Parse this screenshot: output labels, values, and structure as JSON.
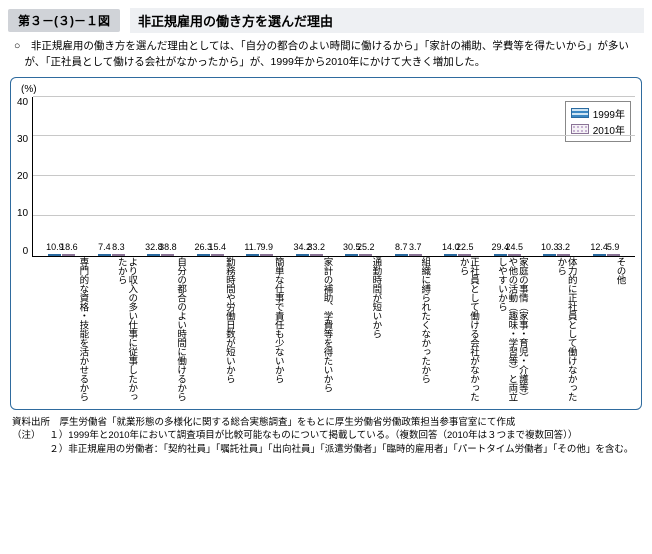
{
  "figure_number": "第３－(３)－１図",
  "figure_title": "非正規雇用の働き方を選んだ理由",
  "summary": "○　非正規雇用の働き方を選んだ理由としては、「自分の都合のよい時間に働けるから」「家計の補助、学費等を得たいから」が多いが、「正社員として働ける会社がなかったから」が、1999年から2010年にかけて大きく増加した。",
  "chart": {
    "type": "bar",
    "unit": "(%)",
    "ylim": [
      0,
      40
    ],
    "ytick_step": 10,
    "grid_color": "#c8c8c8",
    "background_color": "#ffffff",
    "border_color": "#2f6b9e",
    "series": [
      {
        "name": "1999年",
        "style": "bar-1999"
      },
      {
        "name": "2010年",
        "style": "bar-2010"
      }
    ],
    "categories": [
      {
        "label": "専門的な資格・技能を活かせるから",
        "v1999": 10.9,
        "v2010": 18.6
      },
      {
        "label": "より収入の多い仕事に従事したかったから",
        "v1999": 7.4,
        "v2010": 8.3
      },
      {
        "label": "自分の都合のよい時間に働けるから",
        "v1999": 32.8,
        "v2010": 38.8
      },
      {
        "label": "勤務時間や労働日数が短いから",
        "v1999": 26.3,
        "v2010": 15.4
      },
      {
        "label": "簡単な仕事で責任も少ないから",
        "v1999": 11.7,
        "v2010": 9.9
      },
      {
        "label": "家計の補助、学費等を得たいから",
        "v1999": 34.2,
        "v2010": 33.2
      },
      {
        "label": "通勤時間が短いから",
        "v1999": 30.5,
        "v2010": 25.2
      },
      {
        "label": "組織に縛られたくなかったから",
        "v1999": 8.7,
        "v2010": 3.7
      },
      {
        "label": "正社員として働ける会社がなかったから",
        "v1999": 14.0,
        "v2010": 22.5
      },
      {
        "label": "家庭の事情（家事・育児・介護等）や他の活動（趣味・学習等）と両立しやすいから",
        "v1999": 29.4,
        "v2010": 24.5
      },
      {
        "label": "体力的に正社員として働けなかったから",
        "v1999": 10.3,
        "v2010": 3.2
      },
      {
        "label": "その他",
        "v1999": 12.4,
        "v2010": 5.9
      }
    ]
  },
  "source_label": "資料出所　",
  "source_text": "厚生労働省「就業形態の多様化に関する総合実態調査」をもとに厚生労働省労働政策担当参事官室にて作成",
  "notes_label": "（注）　",
  "notes": [
    {
      "num": "１）",
      "text": "1999年と2010年において調査項目が比較可能なものについて掲載している。（複数回答（2010年は３つまで複数回答））"
    },
    {
      "num": "２）",
      "text": "非正規雇用の労働者：「契約社員」「嘱託社員」「出向社員」「派遣労働者」「臨時的雇用者」「パートタイム労働者」「その他」を含む。"
    }
  ]
}
